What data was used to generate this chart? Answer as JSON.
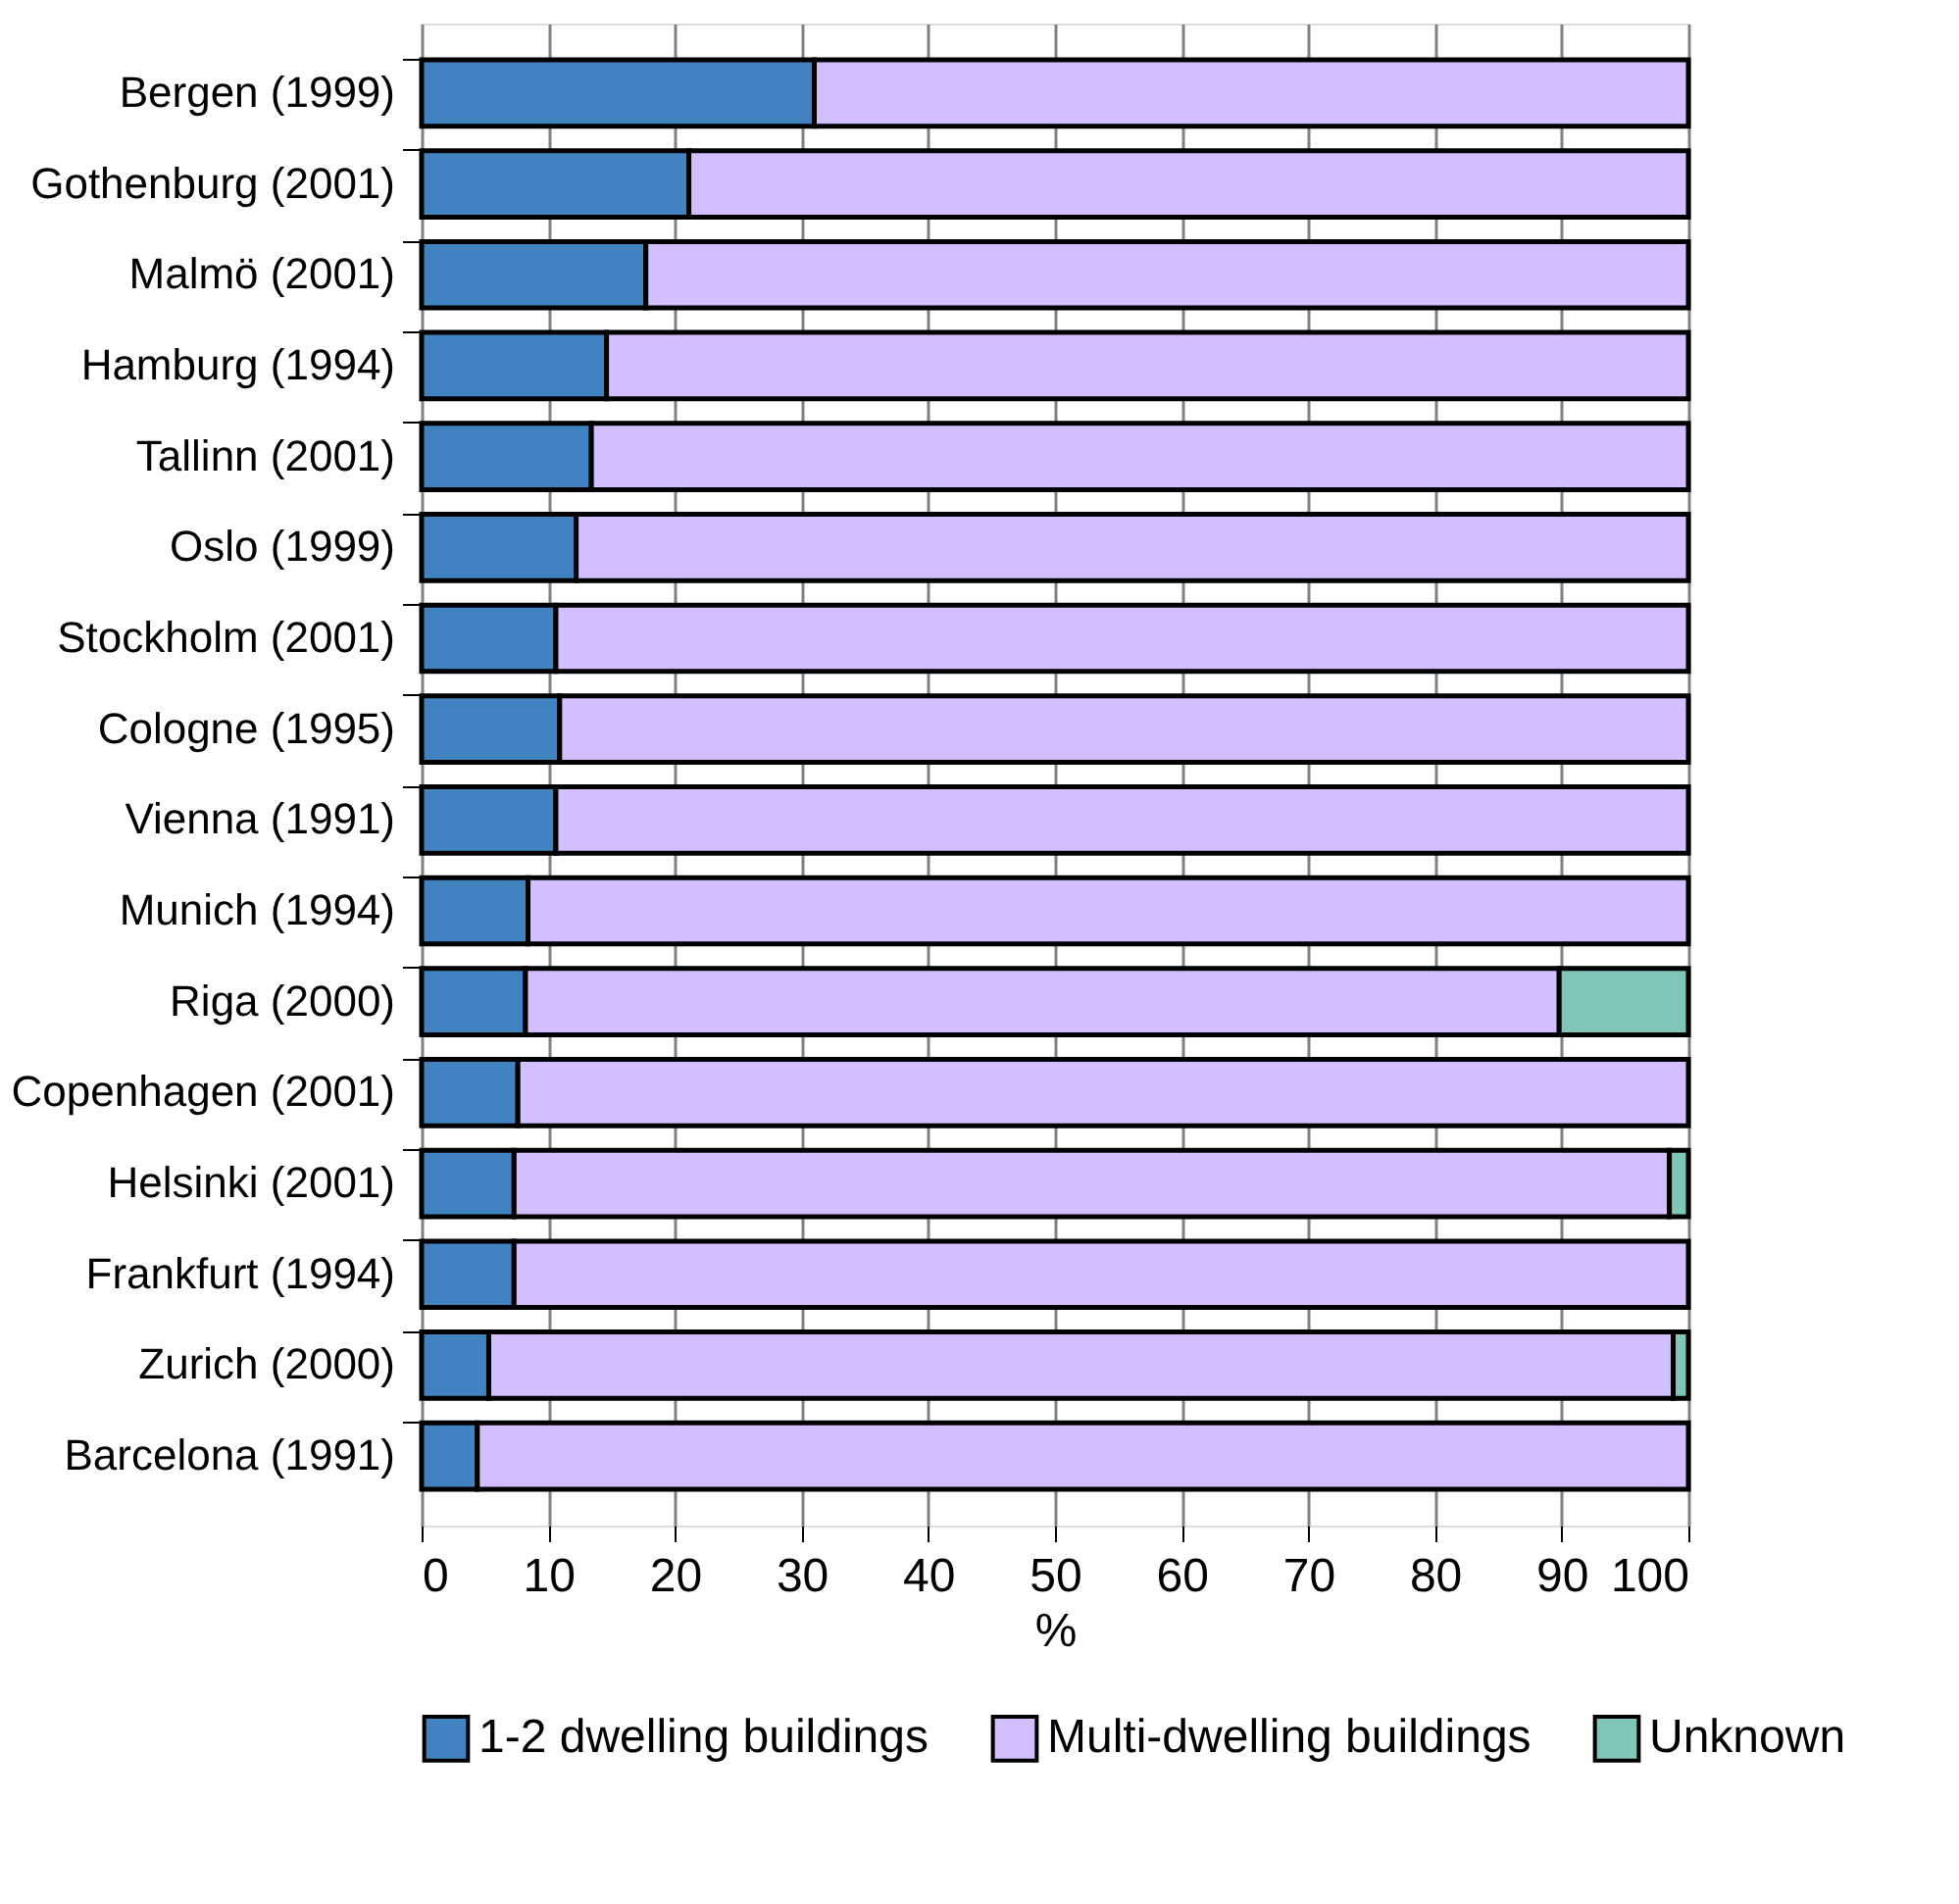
{
  "chart_data": {
    "type": "bar",
    "orientation": "horizontal",
    "stacked": true,
    "xlabel": "%",
    "categories": [
      "Bergen (1999)",
      "Gothenburg (2001)",
      "Malmö (2001)",
      "Hamburg (1994)",
      "Tallinn (2001)",
      "Oslo (1999)",
      "Stockholm (2001)",
      "Cologne (1995)",
      "Vienna (1991)",
      "Munich (1994)",
      "Riga (2000)",
      "Copenhagen (2001)",
      "Helsinki (2001)",
      "Frankfurt (1994)",
      "Zurich (2000)",
      "Barcelona (1991)"
    ],
    "series": [
      {
        "name": "1-2 dwelling buildings",
        "color": "#4183c0",
        "values": [
          31.0,
          21.1,
          17.7,
          14.6,
          13.4,
          12.2,
          10.6,
          10.9,
          10.6,
          8.4,
          8.2,
          7.6,
          7.3,
          7.3,
          5.3,
          4.4
        ]
      },
      {
        "name": "Multi-dwelling buildings",
        "color": "#d2bfff",
        "values": [
          69.0,
          78.9,
          82.3,
          85.4,
          86.6,
          87.8,
          89.4,
          89.1,
          89.4,
          91.6,
          81.6,
          92.4,
          91.2,
          92.7,
          93.5,
          95.6
        ]
      },
      {
        "name": "Unknown",
        "color": "#7fc6b9",
        "values": [
          null,
          null,
          null,
          null,
          null,
          null,
          null,
          null,
          null,
          null,
          10.2,
          null,
          1.5,
          null,
          1.2,
          null
        ]
      }
    ],
    "xlim": [
      0,
      100
    ],
    "xticks": [
      0,
      10,
      20,
      30,
      40,
      50,
      60,
      70,
      80,
      90,
      100
    ],
    "grid": "x",
    "legend": "bottom"
  }
}
